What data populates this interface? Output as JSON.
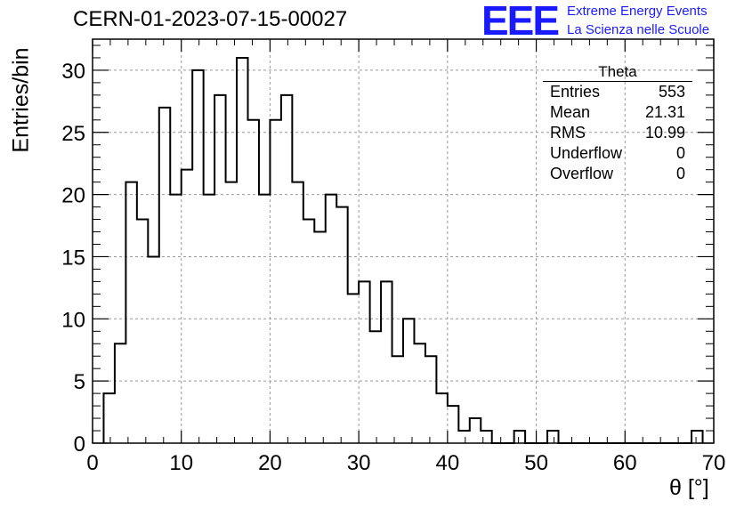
{
  "chart_data": {
    "type": "bar",
    "title": "CERN-01-2023-07-15-00027",
    "xlabel": "θ [°]",
    "ylabel": "Entries/bin",
    "xlim": [
      0,
      70
    ],
    "ylim": [
      0,
      32.5
    ],
    "grid": true,
    "x_ticks": [
      "0",
      "10",
      "20",
      "30",
      "40",
      "50",
      "60",
      "70"
    ],
    "y_ticks": [
      "0",
      "5",
      "10",
      "15",
      "20",
      "25",
      "30"
    ],
    "bin_edges_start": 1.25,
    "bin_width": 1.25,
    "values": [
      4,
      8,
      21,
      18,
      15,
      27,
      20,
      22,
      30,
      20,
      28,
      21,
      31,
      26,
      20,
      26,
      28,
      21,
      18,
      17,
      20,
      19,
      12,
      13,
      9,
      13,
      7,
      10,
      8,
      7,
      4,
      3,
      1,
      2,
      1,
      0,
      0,
      1,
      0,
      0,
      1,
      0,
      0,
      0,
      0,
      0,
      0,
      0,
      0,
      0,
      0,
      0,
      0,
      1
    ],
    "stats_box": {
      "name": "Theta",
      "rows": [
        {
          "label": "Entries",
          "value": "553"
        },
        {
          "label": "Mean",
          "value": "21.31"
        },
        {
          "label": "RMS",
          "value": "10.99"
        },
        {
          "label": "Underflow",
          "value": "0"
        },
        {
          "label": "Overflow",
          "value": "0"
        }
      ]
    },
    "logo": {
      "mark": "EEE",
      "line1": "Extreme Energy Events",
      "line2": "La Scienza nelle Scuole",
      "color": "#1a1aff"
    }
  }
}
